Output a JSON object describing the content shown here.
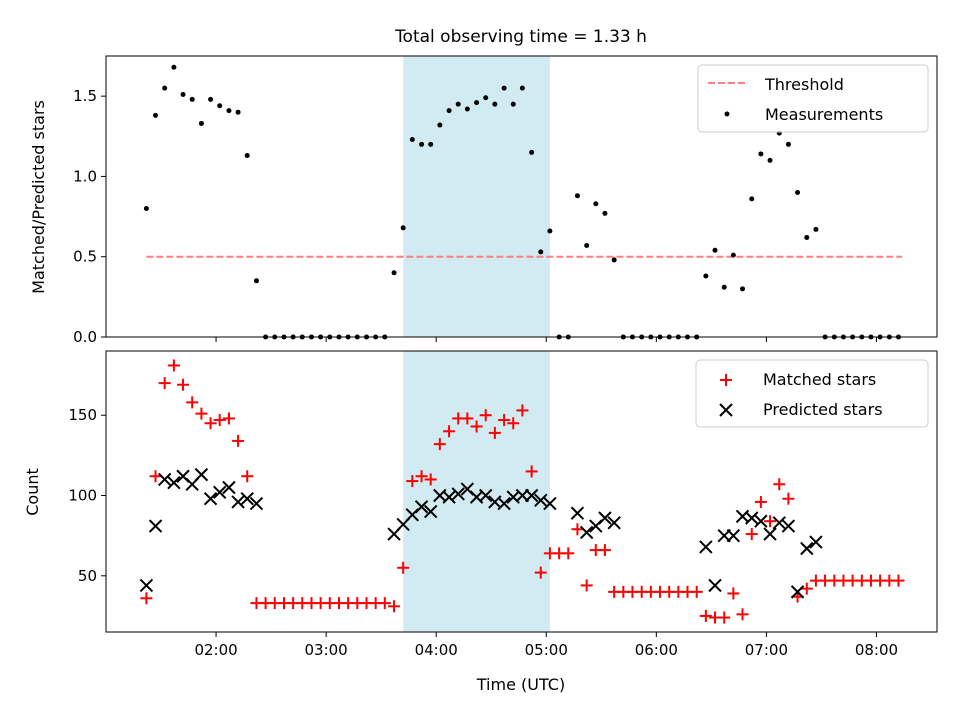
{
  "chart_data": {
    "title": "Total observing time = 1.33 h",
    "x_axis": {
      "label": "Time (UTC)",
      "tick_labels": [
        "02:00",
        "03:00",
        "04:00",
        "05:00",
        "06:00",
        "07:00",
        "08:00"
      ],
      "tick_hours": [
        2,
        3,
        4,
        5,
        6,
        7,
        8
      ],
      "range_hours": [
        1.0,
        8.55
      ]
    },
    "shaded_interval_hours": [
      3.7,
      5.033
    ],
    "shade_color": "#add8e6",
    "panels": [
      {
        "type": "scatter",
        "ylabel": "Matched/Predicted stars",
        "ylim": [
          0,
          1.75
        ],
        "yticks": [
          0.0,
          0.5,
          1.0,
          1.5
        ],
        "ytick_labels": [
          "0.0",
          "0.5",
          "1.0",
          "1.5"
        ],
        "legend_position": "upper right",
        "threshold": {
          "name": "Threshold",
          "value": 0.5,
          "x_range": [
            1.367,
            8.233
          ],
          "color": "#ff7f7f"
        },
        "series": [
          {
            "name": "Measurements",
            "color": "#000000",
            "marker": "dot",
            "x": [
              1.367,
              1.45,
              1.533,
              1.617,
              1.7,
              1.783,
              1.867,
              1.95,
              2.033,
              2.117,
              2.2,
              2.283,
              2.367,
              2.45,
              2.533,
              2.617,
              2.7,
              2.783,
              2.867,
              2.95,
              3.033,
              3.117,
              3.2,
              3.283,
              3.367,
              3.45,
              3.533,
              3.617,
              3.7,
              3.783,
              3.867,
              3.95,
              4.033,
              4.117,
              4.2,
              4.283,
              4.367,
              4.45,
              4.533,
              4.617,
              4.7,
              4.783,
              4.867,
              4.95,
              5.033,
              5.117,
              5.2,
              5.283,
              5.367,
              5.45,
              5.533,
              5.617,
              5.7,
              5.783,
              5.867,
              5.95,
              6.033,
              6.117,
              6.2,
              6.283,
              6.367,
              6.45,
              6.533,
              6.617,
              6.7,
              6.783,
              6.867,
              6.95,
              7.033,
              7.117,
              7.2,
              7.283,
              7.367,
              7.45,
              7.533,
              7.617,
              7.7,
              7.783,
              7.867,
              7.95,
              8.033,
              8.117,
              8.2
            ],
            "y": [
              0.8,
              1.38,
              1.55,
              1.68,
              1.51,
              1.48,
              1.33,
              1.48,
              1.44,
              1.41,
              1.4,
              1.13,
              0.35,
              0,
              0,
              0,
              0,
              0,
              0,
              0,
              0,
              0,
              0,
              0,
              0,
              0,
              0,
              0.4,
              0.68,
              1.23,
              1.2,
              1.2,
              1.32,
              1.41,
              1.45,
              1.42,
              1.46,
              1.49,
              1.45,
              1.55,
              1.45,
              1.55,
              1.15,
              0.53,
              0.66,
              0,
              0,
              0.88,
              0.57,
              0.83,
              0.77,
              0.48,
              0,
              0,
              0,
              0,
              0,
              0,
              0,
              0,
              0,
              0.38,
              0.54,
              0.31,
              0.51,
              0.3,
              0.86,
              1.14,
              1.1,
              1.27,
              1.2,
              0.9,
              0.62,
              0.67,
              0,
              0,
              0,
              0,
              0,
              0,
              0,
              0,
              0
            ]
          }
        ]
      },
      {
        "type": "scatter",
        "ylabel": "Count",
        "ylim": [
          15,
          190
        ],
        "yticks": [
          50,
          100,
          150
        ],
        "ytick_labels": [
          "50",
          "100",
          "150"
        ],
        "legend_position": "upper right",
        "series": [
          {
            "name": "Matched stars",
            "color": "#ff0000",
            "marker": "plus",
            "x": [
              1.367,
              1.45,
              1.533,
              1.617,
              1.7,
              1.783,
              1.867,
              1.95,
              2.033,
              2.117,
              2.2,
              2.283,
              2.367,
              2.45,
              2.533,
              2.617,
              2.7,
              2.783,
              2.867,
              2.95,
              3.033,
              3.117,
              3.2,
              3.283,
              3.367,
              3.45,
              3.533,
              3.617,
              3.7,
              3.783,
              3.867,
              3.95,
              4.033,
              4.117,
              4.2,
              4.283,
              4.367,
              4.45,
              4.533,
              4.617,
              4.7,
              4.783,
              4.867,
              4.95,
              5.033,
              5.117,
              5.2,
              5.283,
              5.367,
              5.45,
              5.533,
              5.617,
              5.7,
              5.783,
              5.867,
              5.95,
              6.033,
              6.117,
              6.2,
              6.283,
              6.367,
              6.45,
              6.533,
              6.617,
              6.7,
              6.783,
              6.867,
              6.95,
              7.033,
              7.117,
              7.2,
              7.283,
              7.367,
              7.45,
              7.533,
              7.617,
              7.7,
              7.783,
              7.867,
              7.95,
              8.033,
              8.117,
              8.2
            ],
            "y": [
              36,
              112,
              170,
              181,
              169,
              158,
              151,
              145,
              147,
              148,
              134,
              112,
              33,
              33,
              33,
              33,
              33,
              33,
              33,
              33,
              33,
              33,
              33,
              33,
              33,
              33,
              33,
              31,
              55,
              109,
              112,
              110,
              132,
              140,
              148,
              148,
              143,
              150,
              139,
              147,
              145,
              153,
              115,
              52,
              64,
              64,
              64,
              79,
              44,
              66,
              66,
              40,
              40,
              40,
              40,
              40,
              40,
              40,
              40,
              40,
              40,
              25,
              24,
              24,
              39,
              26,
              76,
              96,
              84,
              107,
              98,
              37,
              42,
              47,
              47,
              47,
              47,
              47,
              47,
              47,
              47,
              47,
              47
            ]
          },
          {
            "name": "Predicted stars",
            "color": "#000000",
            "marker": "x",
            "x": [
              1.367,
              1.45,
              1.533,
              1.617,
              1.7,
              1.783,
              1.867,
              1.95,
              2.033,
              2.117,
              2.2,
              2.283,
              2.367,
              3.617,
              3.7,
              3.783,
              3.867,
              3.95,
              4.033,
              4.117,
              4.2,
              4.283,
              4.367,
              4.45,
              4.533,
              4.617,
              4.7,
              4.783,
              4.867,
              4.95,
              5.033,
              5.283,
              5.367,
              5.45,
              5.533,
              5.617,
              6.45,
              6.533,
              6.617,
              6.7,
              6.783,
              6.867,
              6.95,
              7.033,
              7.117,
              7.2,
              7.283,
              7.367,
              7.45
            ],
            "y": [
              44,
              81,
              110,
              108,
              112,
              107,
              113,
              98,
              102,
              105,
              96,
              98,
              95,
              76,
              82,
              88,
              93,
              90,
              100,
              99,
              101,
              104,
              99,
              100,
              96,
              95,
              99,
              100,
              100,
              97,
              95,
              89,
              77,
              81,
              86,
              83,
              68,
              44,
              75,
              75,
              87,
              86,
              84,
              76,
              83,
              81,
              40,
              67,
              71
            ]
          }
        ]
      }
    ]
  }
}
